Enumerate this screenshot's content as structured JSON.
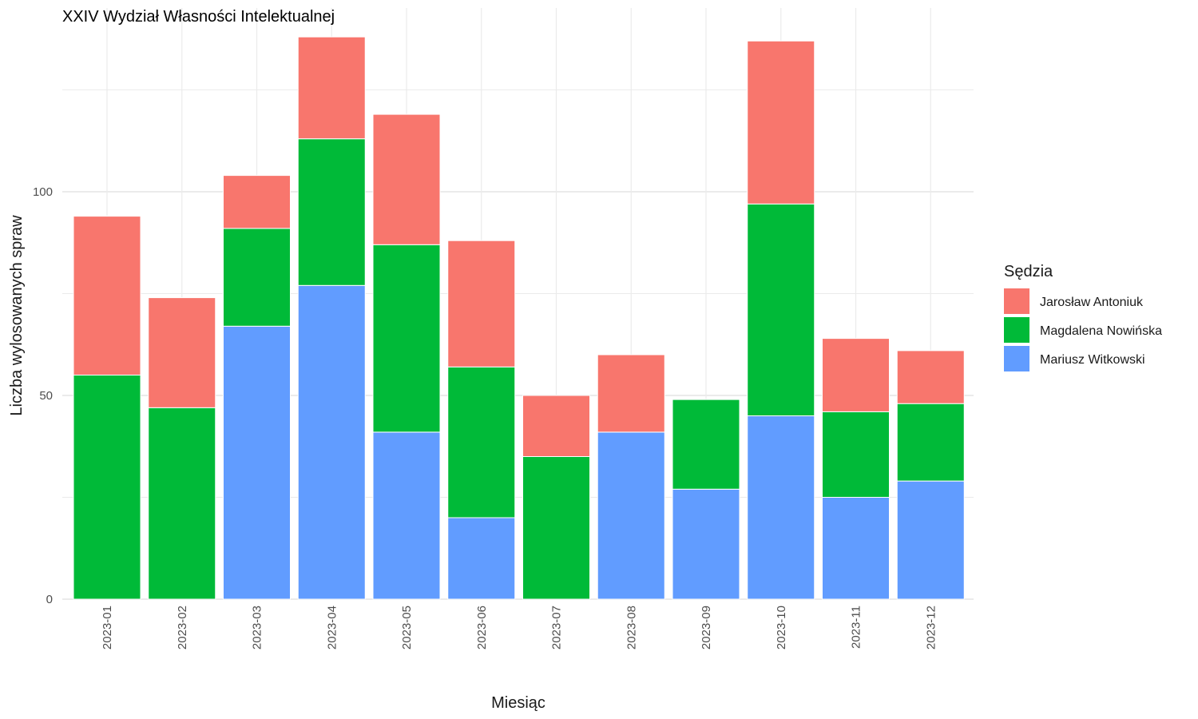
{
  "chart_data": {
    "type": "bar",
    "stacked": true,
    "title": "XXIV Wydział Własności Intelektualnej",
    "xlabel": "Miesiąc",
    "ylabel": "Liczba wylosowanych spraw",
    "categories": [
      "2023-01",
      "2023-02",
      "2023-03",
      "2023-04",
      "2023-05",
      "2023-06",
      "2023-07",
      "2023-08",
      "2023-09",
      "2023-10",
      "2023-11",
      "2023-12"
    ],
    "ylim": [
      0,
      140
    ],
    "yticks": [
      0,
      50,
      100
    ],
    "grid": true,
    "legend": {
      "title": "Sędzia",
      "position": "right"
    },
    "series": [
      {
        "name": "Mariusz Witkowski",
        "color": "#619CFF",
        "values": [
          0,
          0,
          67,
          77,
          41,
          20,
          0,
          41,
          27,
          45,
          25,
          29
        ]
      },
      {
        "name": "Magdalena Nowińska",
        "color": "#00BA38",
        "values": [
          55,
          47,
          24,
          36,
          46,
          37,
          35,
          0,
          22,
          52,
          21,
          19
        ]
      },
      {
        "name": "Jarosław Antoniuk",
        "color": "#F8766D",
        "values": [
          39,
          27,
          13,
          25,
          32,
          31,
          15,
          19,
          0,
          40,
          18,
          13
        ]
      }
    ],
    "legend_order": [
      "Jarosław Antoniuk",
      "Magdalena Nowińska",
      "Mariusz Witkowski"
    ]
  }
}
